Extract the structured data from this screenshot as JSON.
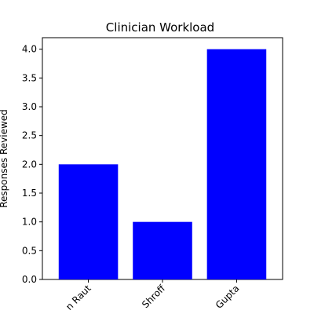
{
  "chart_data": {
    "type": "bar",
    "title": "Clinician Workload",
    "xlabel": "",
    "ylabel": "Responses Reviewed",
    "categories": [
      "n Raut",
      "Shroff",
      "Gupta"
    ],
    "values": [
      2.0,
      1.0,
      4.0
    ],
    "ylim": [
      0,
      4.2
    ],
    "yticks": [
      "0.0",
      "0.5",
      "1.0",
      "1.5",
      "2.0",
      "2.5",
      "3.0",
      "3.5",
      "4.0"
    ],
    "bar_color": "#0000ff",
    "grid": false,
    "legend": "none"
  }
}
